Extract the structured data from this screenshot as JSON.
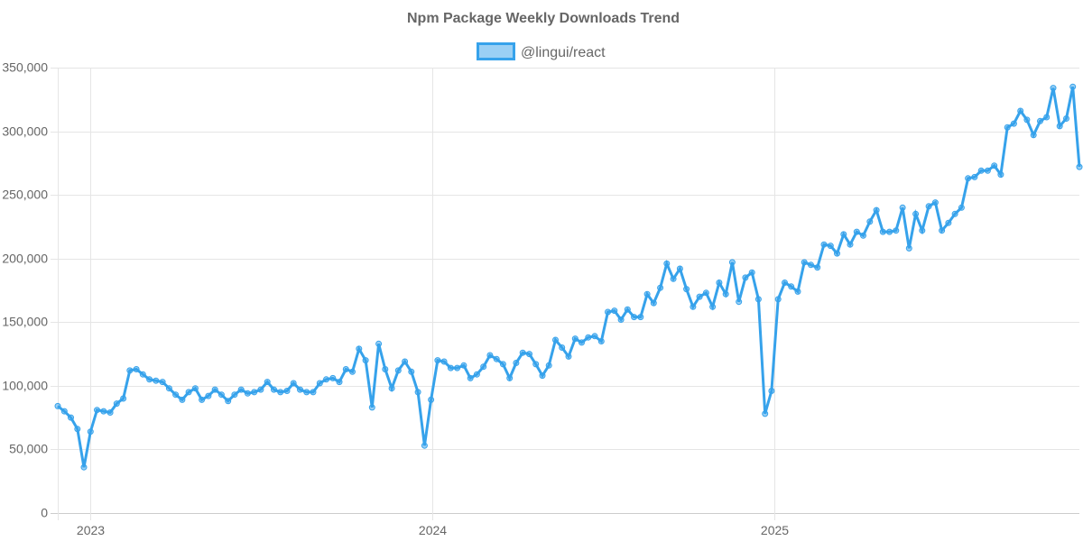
{
  "chart_data": {
    "type": "line",
    "title": "Npm Package Weekly Downloads Trend",
    "legend": {
      "label": "@lingui/react",
      "placement": "top-center"
    },
    "series_color": "#36a2eb",
    "series_fill": "#9ad0f5",
    "ylim": [
      0,
      350000
    ],
    "y_ticks": [
      0,
      50000,
      100000,
      150000,
      200000,
      250000,
      300000,
      350000
    ],
    "y_tick_labels": [
      "0",
      "50,000",
      "100,000",
      "150,000",
      "200,000",
      "250,000",
      "300,000",
      "350,000"
    ],
    "x_unit": "week index",
    "x_ticks": [
      {
        "label": "2023",
        "at": 4.96
      },
      {
        "label": "2024",
        "at": 57.2
      },
      {
        "label": "2025",
        "at": 109.4
      }
    ],
    "grid": true,
    "values": [
      84000,
      80000,
      75000,
      66000,
      36000,
      64000,
      81000,
      80000,
      79000,
      86000,
      90000,
      112000,
      113000,
      109000,
      105000,
      104000,
      103000,
      98000,
      93000,
      89000,
      95000,
      98000,
      89000,
      92000,
      97000,
      93000,
      88000,
      93000,
      97000,
      94000,
      95000,
      97000,
      103000,
      97000,
      95000,
      96000,
      102000,
      97000,
      95000,
      95000,
      102000,
      105000,
      106000,
      103000,
      113000,
      111000,
      129000,
      120000,
      83000,
      133000,
      113000,
      98000,
      112000,
      119000,
      111000,
      95000,
      53000,
      89000,
      120000,
      119000,
      114000,
      114000,
      116000,
      106000,
      109000,
      115000,
      124000,
      121000,
      117000,
      106000,
      118000,
      126000,
      125000,
      117000,
      108000,
      116000,
      136000,
      130000,
      123000,
      137000,
      134000,
      138000,
      139000,
      135000,
      158000,
      159000,
      152000,
      160000,
      154000,
      154000,
      172000,
      165000,
      177000,
      196000,
      184000,
      192000,
      176000,
      162000,
      170000,
      173000,
      162000,
      181000,
      172000,
      197000,
      166000,
      185000,
      189000,
      168000,
      78000,
      96000,
      168000,
      181000,
      178000,
      174000,
      197000,
      195000,
      193000,
      211000,
      210000,
      204000,
      219000,
      211000,
      221000,
      218000,
      229000,
      238000,
      221000,
      221000,
      222000,
      240000,
      208000,
      235000,
      222000,
      241000,
      244000,
      222000,
      228000,
      235000,
      240000,
      263000,
      264000,
      269000,
      269000,
      273000,
      266000,
      303000,
      306000,
      316000,
      309000,
      297000,
      308000,
      311000,
      334000,
      304000,
      310000,
      335000,
      272000
    ]
  }
}
